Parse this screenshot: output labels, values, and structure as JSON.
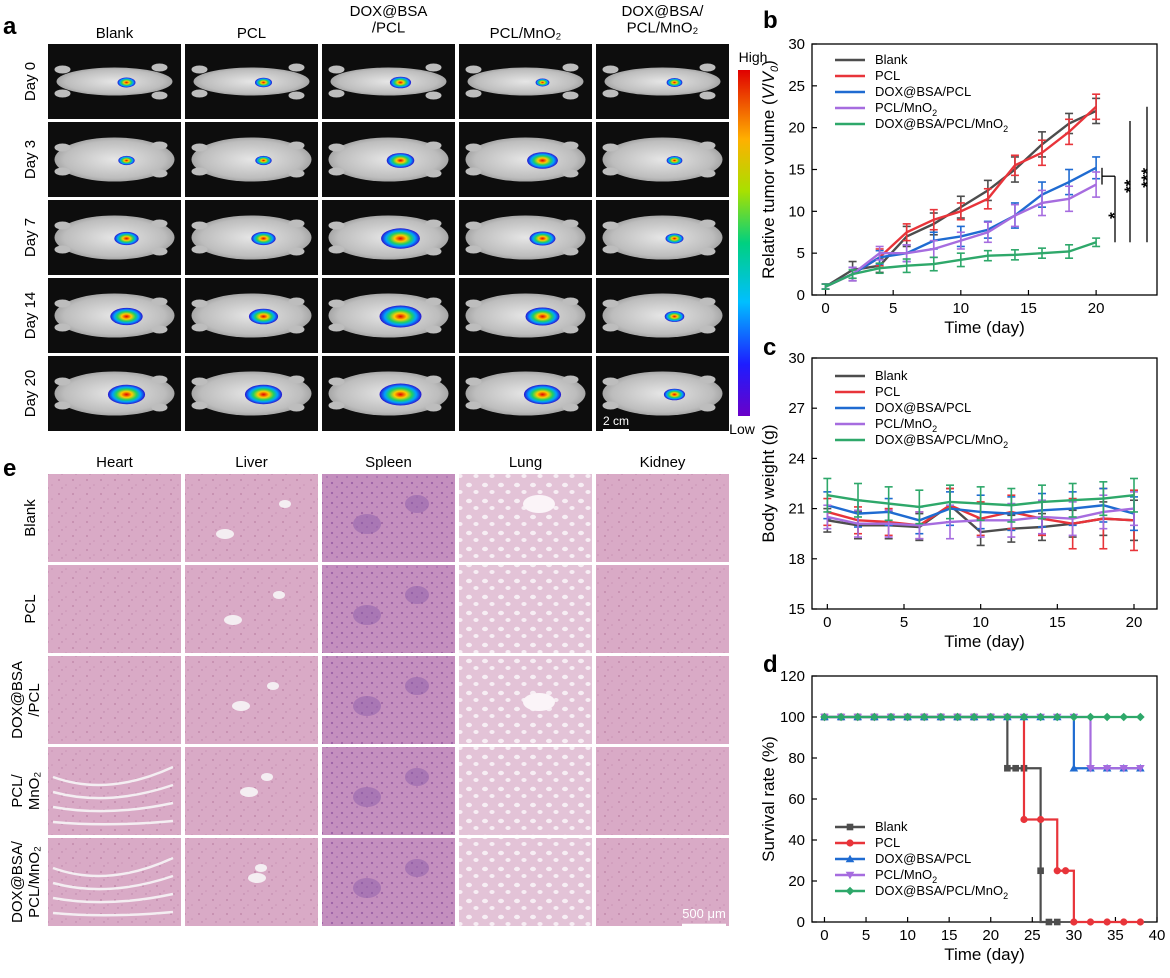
{
  "panel_a": {
    "letter": "a",
    "columns": [
      "Blank",
      "PCL",
      "DOX@BSA\n/PCL",
      "PCL/MnO₂",
      "DOX@BSA/\nPCL/MnO₂"
    ],
    "rows": [
      "Day 0",
      "Day 3",
      "Day 7",
      "Day 14",
      "Day 20"
    ],
    "colorbar_high": "High",
    "colorbar_low": "Low",
    "scale_bar": "2 cm",
    "signal_levels": [
      [
        0.25,
        0.22,
        0.35,
        0.12,
        0.18
      ],
      [
        0.2,
        0.2,
        0.55,
        0.65,
        0.18
      ],
      [
        0.45,
        0.45,
        0.9,
        0.5,
        0.25
      ],
      [
        0.7,
        0.6,
        1.0,
        0.75,
        0.3
      ],
      [
        0.85,
        0.85,
        1.0,
        0.85,
        0.35
      ]
    ]
  },
  "panel_e": {
    "letter": "e",
    "columns": [
      "Heart",
      "Liver",
      "Spleen",
      "Lung",
      "Kidney"
    ],
    "rows": [
      "Blank",
      "PCL",
      "DOX@BSA\n/PCL",
      "PCL/\nMnO₂",
      "DOX@BSA/\nPCL/MnO₂"
    ],
    "scale_bar": "500 μm"
  },
  "series_colors": {
    "Blank": "#4d4d4d",
    "PCL": "#e8343a",
    "DOX@BSA/PCL": "#1f6bd1",
    "PCL/MnO₂": "#a66cdf",
    "DOX@BSA/PCL/MnO₂": "#2ea86a"
  },
  "chart_data": [
    {
      "letter": "b",
      "type": "line",
      "xlabel": "Time (day)",
      "ylabel": "Relative tumor volume (V/V₀)",
      "xlim": [
        -1,
        24.5
      ],
      "ylim": [
        0,
        30
      ],
      "xticks": [
        0,
        5,
        10,
        15,
        20
      ],
      "yticks": [
        0,
        5,
        10,
        15,
        20,
        25,
        30
      ],
      "x": [
        0,
        2,
        4,
        6,
        8,
        10,
        12,
        14,
        16,
        18,
        20
      ],
      "series": [
        {
          "name": "Blank",
          "values": [
            1,
            3,
            3.5,
            7,
            8.5,
            10.5,
            12.5,
            15,
            18,
            20.5,
            22
          ],
          "err": [
            0.3,
            1.0,
            0.8,
            1.2,
            1.3,
            1.3,
            1.2,
            1.5,
            1.5,
            1.2,
            1.5
          ]
        },
        {
          "name": "PCL",
          "values": [
            1,
            2.5,
            4.5,
            7.5,
            9,
            10,
            11.5,
            15.5,
            17,
            19.5,
            22.5
          ],
          "err": [
            0.3,
            0.8,
            1.0,
            1.0,
            1.2,
            1.0,
            1.2,
            1.2,
            1.5,
            1.5,
            1.5
          ]
        },
        {
          "name": "DOX@BSA/PCL",
          "values": [
            1,
            2.5,
            4.5,
            5,
            6.5,
            7,
            7.8,
            9.5,
            12,
            13.5,
            15.2
          ],
          "err": [
            0.3,
            0.8,
            0.8,
            1.0,
            1.0,
            1.2,
            1.0,
            1.5,
            1.5,
            1.5,
            1.3
          ]
        },
        {
          "name": "PCL/MnO₂",
          "values": [
            1,
            2.5,
            5,
            5,
            5.5,
            6.5,
            7.5,
            9.5,
            11,
            11.5,
            13.2
          ],
          "err": [
            0.3,
            0.8,
            0.8,
            1.0,
            1.0,
            1.0,
            1.2,
            1.3,
            1.5,
            1.5,
            1.5
          ]
        },
        {
          "name": "DOX@BSA/PCL/MnO₂",
          "values": [
            1,
            2.5,
            3.2,
            3.5,
            3.7,
            4.2,
            4.7,
            4.8,
            5,
            5.2,
            6.3
          ],
          "err": [
            0.3,
            0.5,
            0.6,
            0.8,
            0.8,
            0.8,
            0.6,
            0.6,
            0.6,
            0.8,
            0.5
          ]
        }
      ],
      "significance": [
        "*",
        "**",
        "***"
      ],
      "legend": "top-left"
    },
    {
      "letter": "c",
      "type": "line",
      "xlabel": "Time (day)",
      "ylabel": "Body weight (g)",
      "xlim": [
        -1,
        21.5
      ],
      "ylim": [
        15,
        30
      ],
      "xticks": [
        0,
        5,
        10,
        15,
        20
      ],
      "yticks": [
        15,
        18,
        21,
        24,
        27,
        30
      ],
      "x": [
        0,
        2,
        4,
        6,
        8,
        10,
        12,
        14,
        16,
        18,
        20
      ],
      "series": [
        {
          "name": "Blank",
          "values": [
            20.3,
            20,
            20,
            19.9,
            21.2,
            19.6,
            19.8,
            19.9,
            20.1,
            20.4,
            20.3
          ],
          "err": [
            0.7,
            0.8,
            0.8,
            0.8,
            1.0,
            0.8,
            0.8,
            0.8,
            0.8,
            1.0,
            1.2
          ]
        },
        {
          "name": "PCL",
          "values": [
            20.8,
            20.3,
            20.2,
            20,
            21.2,
            20.4,
            20.8,
            20.4,
            20.1,
            20.4,
            20.3
          ],
          "err": [
            0.8,
            0.8,
            0.8,
            0.8,
            1.0,
            1.0,
            1.0,
            1.0,
            1.5,
            1.8,
            1.8
          ]
        },
        {
          "name": "DOX@BSA/PCL",
          "values": [
            21.2,
            20.7,
            20.8,
            20.3,
            21,
            20.8,
            20.7,
            20.9,
            21,
            21.2,
            20.7
          ],
          "err": [
            0.8,
            0.8,
            0.8,
            0.8,
            1.0,
            1.0,
            1.0,
            1.0,
            1.0,
            1.0,
            1.0
          ]
        },
        {
          "name": "PCL/MnO₂",
          "values": [
            20.5,
            20.1,
            20.1,
            20,
            20.2,
            20.3,
            20.3,
            20.5,
            20.4,
            20.8,
            21
          ],
          "err": [
            0.7,
            0.8,
            0.8,
            0.8,
            1.0,
            1.0,
            1.0,
            1.0,
            1.0,
            1.0,
            1.0
          ]
        },
        {
          "name": "DOX@BSA/PCL/MnO₂",
          "values": [
            21.8,
            21.5,
            21.3,
            21.1,
            21.4,
            21.3,
            21.2,
            21.4,
            21.5,
            21.6,
            21.8
          ],
          "err": [
            1.0,
            1.0,
            1.0,
            1.0,
            1.0,
            1.0,
            1.0,
            1.0,
            1.0,
            1.0,
            1.0
          ]
        }
      ],
      "legend": "top-left"
    },
    {
      "letter": "d",
      "type": "line",
      "step": true,
      "xlabel": "Time (day)",
      "ylabel": "Survival rate (%)",
      "xlim": [
        -1.5,
        40
      ],
      "ylim": [
        0,
        120
      ],
      "xticks": [
        0,
        5,
        10,
        15,
        20,
        25,
        30,
        35,
        40
      ],
      "yticks": [
        0,
        20,
        40,
        60,
        80,
        100,
        120
      ],
      "x": [
        0,
        2,
        4,
        6,
        8,
        10,
        12,
        14,
        16,
        18,
        20,
        22,
        24,
        26,
        28,
        30,
        32,
        34,
        36,
        38
      ],
      "series": [
        {
          "name": "Blank",
          "steps": [
            [
              0,
              100
            ],
            [
              22,
              100
            ],
            [
              22,
              75
            ],
            [
              26,
              75
            ],
            [
              26,
              0
            ],
            [
              28,
              0
            ]
          ],
          "markers_x": [
            0,
            2,
            4,
            6,
            8,
            10,
            12,
            14,
            16,
            18,
            20,
            22,
            23,
            24,
            26,
            27,
            28
          ],
          "markers_y": [
            100,
            100,
            100,
            100,
            100,
            100,
            100,
            100,
            100,
            100,
            100,
            75,
            75,
            75,
            25,
            0,
            0
          ]
        },
        {
          "name": "PCL",
          "steps": [
            [
              0,
              100
            ],
            [
              24,
              100
            ],
            [
              24,
              50
            ],
            [
              28,
              50
            ],
            [
              28,
              25
            ],
            [
              30,
              25
            ],
            [
              30,
              0
            ],
            [
              38,
              0
            ]
          ],
          "markers_x": [
            0,
            2,
            4,
            6,
            8,
            10,
            12,
            14,
            16,
            18,
            20,
            22,
            24,
            26,
            28,
            29,
            30,
            32,
            34,
            36,
            38
          ],
          "markers_y": [
            100,
            100,
            100,
            100,
            100,
            100,
            100,
            100,
            100,
            100,
            100,
            100,
            50,
            50,
            25,
            25,
            0,
            0,
            0,
            0,
            0
          ]
        },
        {
          "name": "DOX@BSA/PCL",
          "steps": [
            [
              0,
              100
            ],
            [
              30,
              100
            ],
            [
              30,
              75
            ],
            [
              38,
              75
            ]
          ],
          "markers_x": [
            0,
            2,
            4,
            6,
            8,
            10,
            12,
            14,
            16,
            18,
            20,
            22,
            24,
            26,
            28,
            30,
            32,
            34,
            36,
            38
          ],
          "markers_y": [
            100,
            100,
            100,
            100,
            100,
            100,
            100,
            100,
            100,
            100,
            100,
            100,
            100,
            100,
            100,
            75,
            75,
            75,
            75,
            75
          ]
        },
        {
          "name": "PCL/MnO₂",
          "steps": [
            [
              0,
              100
            ],
            [
              32,
              100
            ],
            [
              32,
              75
            ],
            [
              38,
              75
            ]
          ],
          "markers_x": [
            0,
            2,
            4,
            6,
            8,
            10,
            12,
            14,
            16,
            18,
            20,
            22,
            24,
            26,
            28,
            30,
            32,
            34,
            36,
            38
          ],
          "markers_y": [
            100,
            100,
            100,
            100,
            100,
            100,
            100,
            100,
            100,
            100,
            100,
            100,
            100,
            100,
            100,
            100,
            75,
            75,
            75,
            75
          ]
        },
        {
          "name": "DOX@BSA/PCL/MnO₂",
          "steps": [
            [
              0,
              100
            ],
            [
              38,
              100
            ]
          ],
          "markers_x": [
            0,
            2,
            4,
            6,
            8,
            10,
            12,
            14,
            16,
            18,
            20,
            22,
            24,
            26,
            28,
            30,
            32,
            34,
            36,
            38
          ],
          "markers_y": [
            100,
            100,
            100,
            100,
            100,
            100,
            100,
            100,
            100,
            100,
            100,
            100,
            100,
            100,
            100,
            100,
            100,
            100,
            100,
            100
          ]
        }
      ],
      "legend": "bottom-left"
    }
  ]
}
